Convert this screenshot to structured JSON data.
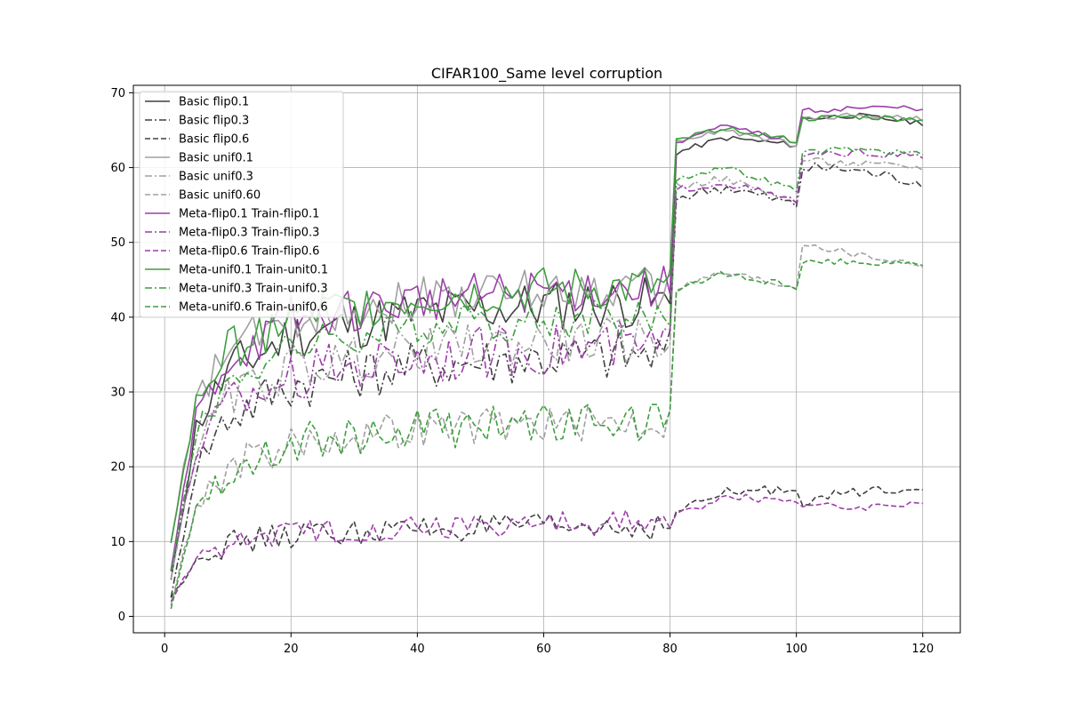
{
  "chart_data": {
    "type": "line",
    "title": "CIFAR100_Same level corruption",
    "xlabel": "",
    "ylabel": "",
    "xlim": [
      -4.95,
      125.95
    ],
    "ylim": [
      -2.2,
      71.0
    ],
    "xticks": [
      0,
      20,
      40,
      60,
      80,
      100,
      120
    ],
    "yticks": [
      0,
      10,
      20,
      30,
      40,
      50,
      60,
      70
    ],
    "grid": true,
    "legend_position": "upper-left",
    "anchors": [
      [
        1,
        0.0
      ],
      [
        5,
        0.55
      ],
      [
        10,
        0.75
      ],
      [
        20,
        0.88
      ],
      [
        40,
        0.96
      ],
      [
        60,
        0.99
      ],
      [
        79,
        1.0
      ],
      [
        80,
        1.0
      ]
    ],
    "series": [
      {
        "name": "Basic flip0.1",
        "color": "#404040",
        "dash": "solid",
        "start": 4.9,
        "plateau": 42.0,
        "noise": 3.5,
        "seg2": [
          62.0,
          64.0,
          63.0
        ],
        "seg3": [
          66.5,
          67.0,
          66.0
        ],
        "seg_noise": 0.4
      },
      {
        "name": "Basic flip0.3",
        "color": "#404040",
        "dash": "dashdot",
        "start": 2.5,
        "plateau": 35.0,
        "noise": 3.5,
        "seg2": [
          56.0,
          57.5,
          55.0
        ],
        "seg3": [
          60.0,
          59.8,
          58.0
        ],
        "seg_noise": 0.8
      },
      {
        "name": "Basic flip0.6",
        "color": "#404040",
        "dash": "dashed",
        "start": 2.5,
        "plateau": 12.0,
        "noise": 1.8,
        "seg2": [
          14.0,
          16.5,
          17.0
        ],
        "seg3": [
          15.5,
          16.5,
          17.5
        ],
        "seg_noise": 0.7
      },
      {
        "name": "Basic unif0.1",
        "color": "#a0a0a0",
        "dash": "solid",
        "start": 10.0,
        "plateau": 44.0,
        "noise": 3.0,
        "seg2": [
          63.5,
          65.0,
          63.0
        ],
        "seg3": [
          66.5,
          67.0,
          66.5
        ],
        "seg_noise": 0.4
      },
      {
        "name": "Basic unif0.3",
        "color": "#a0a0a0",
        "dash": "dashdot",
        "start": 5.0,
        "plateau": 37.0,
        "noise": 3.0,
        "seg2": [
          57.5,
          58.5,
          55.5
        ],
        "seg3": [
          61.0,
          60.5,
          60.0
        ],
        "seg_noise": 0.5
      },
      {
        "name": "Basic unif0.60",
        "color": "#a0a0a0",
        "dash": "dashed",
        "start": 1.5,
        "plateau": 26.0,
        "noise": 2.5,
        "seg2": [
          44.0,
          46.0,
          44.0
        ],
        "seg3": [
          50.0,
          48.5,
          47.0
        ],
        "seg_noise": 0.5
      },
      {
        "name": "Meta-flip0.1 Train-flip0.1",
        "color": "#9c3fa9",
        "dash": "solid",
        "start": 6.2,
        "plateau": 44.0,
        "noise": 3.0,
        "seg2": [
          63.5,
          65.5,
          63.5
        ],
        "seg3": [
          67.5,
          68.0,
          68.0
        ],
        "seg_noise": 0.4
      },
      {
        "name": "Meta-flip0.3 Train-flip0.3",
        "color": "#9c3fa9",
        "dash": "dashdot",
        "start": 6.0,
        "plateau": 36.0,
        "noise": 3.5,
        "seg2": [
          57.0,
          58.0,
          55.5
        ],
        "seg3": [
          61.5,
          62.0,
          61.5
        ],
        "seg_noise": 0.5
      },
      {
        "name": "Meta-flip0.6 Train-flip0.6",
        "color": "#9c3fa9",
        "dash": "dashed",
        "start": 2.0,
        "plateau": 12.5,
        "noise": 1.8,
        "seg2": [
          13.5,
          16.0,
          15.5
        ],
        "seg3": [
          15.0,
          14.5,
          15.3
        ],
        "seg_noise": 0.5
      },
      {
        "name": "Meta-unif0.1 Train-unit0.1",
        "color": "#3f9e3f",
        "dash": "solid",
        "start": 9.8,
        "plateau": 44.0,
        "noise": 3.0,
        "seg2": [
          63.5,
          65.5,
          63.5
        ],
        "seg3": [
          66.5,
          66.8,
          66.5
        ],
        "seg_noise": 0.4
      },
      {
        "name": "Meta-unif0.3 Train-unif0.3",
        "color": "#3f9e3f",
        "dash": "dashdot",
        "start": 6.0,
        "plateau": 40.0,
        "noise": 2.5,
        "seg2": [
          58.5,
          60.0,
          57.0
        ],
        "seg3": [
          62.0,
          62.5,
          61.8
        ],
        "seg_noise": 0.4
      },
      {
        "name": "Meta-unif0.6 Train-unif0.6",
        "color": "#3f9e3f",
        "dash": "dashed",
        "start": 1.0,
        "plateau": 26.0,
        "noise": 2.8,
        "seg2": [
          43.5,
          46.0,
          44.0
        ],
        "seg3": [
          47.5,
          47.5,
          47.0
        ],
        "seg_noise": 0.5
      }
    ]
  }
}
